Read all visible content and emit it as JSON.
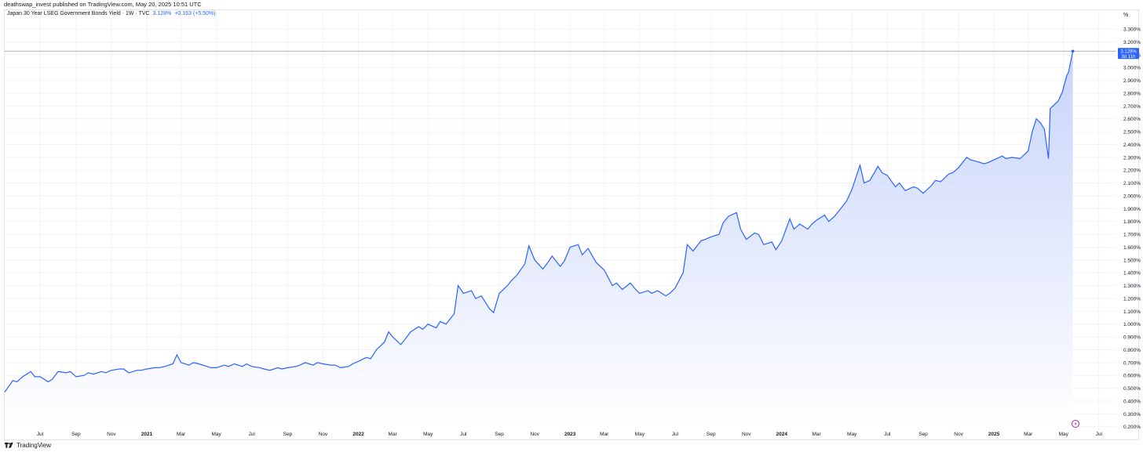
{
  "header": {
    "publisher": "deathswap_invest published on TradingView.com, May 20, 2025 10:51 UTC"
  },
  "legend": {
    "symbol": "Japan 30 Year LSEG Government Bonds Yield · 1W · TVC",
    "value": "3.128%",
    "change": "+0.163 (+5.50%)"
  },
  "footer": {
    "brand": "TradingView"
  },
  "colors": {
    "line": "#2962ff",
    "fill_top": "#c7d4fb",
    "fill_bottom": "#ffffff",
    "grid": "#f0f3fa",
    "price_label_bg": "#2962ff"
  },
  "chart_data": {
    "type": "area",
    "unit": "%",
    "grid": true,
    "last_price_label": {
      "value": "3.128%",
      "countdown": "3d 11h"
    },
    "ylim": [
      0.18,
      3.38
    ],
    "y_ticks": [
      "0.200%",
      "0.300%",
      "0.400%",
      "0.500%",
      "0.600%",
      "0.700%",
      "0.800%",
      "0.900%",
      "1.000%",
      "1.100%",
      "1.200%",
      "1.300%",
      "1.400%",
      "1.500%",
      "1.600%",
      "1.700%",
      "1.800%",
      "1.900%",
      "2.000%",
      "2.100%",
      "2.200%",
      "2.300%",
      "2.400%",
      "2.500%",
      "2.600%",
      "2.700%",
      "2.800%",
      "2.900%",
      "3.000%",
      "3.100%",
      "3.200%",
      "3.300%"
    ],
    "x_ticks": [
      {
        "label": "Jul",
        "date": "2020-07-01",
        "bold": false
      },
      {
        "label": "Sep",
        "date": "2020-09-01",
        "bold": false
      },
      {
        "label": "Nov",
        "date": "2020-11-01",
        "bold": false
      },
      {
        "label": "2021",
        "date": "2021-01-01",
        "bold": true
      },
      {
        "label": "Mar",
        "date": "2021-03-01",
        "bold": false
      },
      {
        "label": "May",
        "date": "2021-05-01",
        "bold": false
      },
      {
        "label": "Jul",
        "date": "2021-07-01",
        "bold": false
      },
      {
        "label": "Sep",
        "date": "2021-09-01",
        "bold": false
      },
      {
        "label": "Nov",
        "date": "2021-11-01",
        "bold": false
      },
      {
        "label": "2022",
        "date": "2022-01-01",
        "bold": true
      },
      {
        "label": "Mar",
        "date": "2022-03-01",
        "bold": false
      },
      {
        "label": "May",
        "date": "2022-05-01",
        "bold": false
      },
      {
        "label": "Jul",
        "date": "2022-07-01",
        "bold": false
      },
      {
        "label": "Sep",
        "date": "2022-09-01",
        "bold": false
      },
      {
        "label": "Nov",
        "date": "2022-11-01",
        "bold": false
      },
      {
        "label": "2023",
        "date": "2023-01-01",
        "bold": true
      },
      {
        "label": "Mar",
        "date": "2023-03-01",
        "bold": false
      },
      {
        "label": "May",
        "date": "2023-05-01",
        "bold": false
      },
      {
        "label": "Jul",
        "date": "2023-07-01",
        "bold": false
      },
      {
        "label": "Sep",
        "date": "2023-09-01",
        "bold": false
      },
      {
        "label": "Nov",
        "date": "2023-11-01",
        "bold": false
      },
      {
        "label": "2024",
        "date": "2024-01-01",
        "bold": true
      },
      {
        "label": "Mar",
        "date": "2024-03-01",
        "bold": false
      },
      {
        "label": "May",
        "date": "2024-05-01",
        "bold": false
      },
      {
        "label": "Jul",
        "date": "2024-07-01",
        "bold": false
      },
      {
        "label": "Sep",
        "date": "2024-09-01",
        "bold": false
      },
      {
        "label": "Nov",
        "date": "2024-11-01",
        "bold": false
      },
      {
        "label": "2025",
        "date": "2025-01-01",
        "bold": true
      },
      {
        "label": "Mar",
        "date": "2025-03-01",
        "bold": false
      },
      {
        "label": "May",
        "date": "2025-05-01",
        "bold": false
      },
      {
        "label": "Jul",
        "date": "2025-07-01",
        "bold": false
      }
    ],
    "series": [
      {
        "points": [
          [
            "2020-05-01",
            0.47
          ],
          [
            "2020-05-15",
            0.56
          ],
          [
            "2020-05-22",
            0.55
          ],
          [
            "2020-06-01",
            0.59
          ],
          [
            "2020-06-15",
            0.63
          ],
          [
            "2020-06-22",
            0.59
          ],
          [
            "2020-07-01",
            0.59
          ],
          [
            "2020-07-15",
            0.55
          ],
          [
            "2020-07-22",
            0.57
          ],
          [
            "2020-08-01",
            0.63
          ],
          [
            "2020-08-15",
            0.62
          ],
          [
            "2020-08-22",
            0.63
          ],
          [
            "2020-09-01",
            0.59
          ],
          [
            "2020-09-15",
            0.6
          ],
          [
            "2020-09-22",
            0.62
          ],
          [
            "2020-10-01",
            0.61
          ],
          [
            "2020-10-15",
            0.63
          ],
          [
            "2020-10-22",
            0.62
          ],
          [
            "2020-11-01",
            0.64
          ],
          [
            "2020-11-15",
            0.65
          ],
          [
            "2020-11-22",
            0.65
          ],
          [
            "2020-12-01",
            0.62
          ],
          [
            "2020-12-15",
            0.64
          ],
          [
            "2020-12-22",
            0.64
          ],
          [
            "2021-01-01",
            0.65
          ],
          [
            "2021-01-15",
            0.66
          ],
          [
            "2021-01-22",
            0.66
          ],
          [
            "2021-02-01",
            0.67
          ],
          [
            "2021-02-15",
            0.69
          ],
          [
            "2021-02-22",
            0.76
          ],
          [
            "2021-03-01",
            0.7
          ],
          [
            "2021-03-15",
            0.68
          ],
          [
            "2021-03-22",
            0.7
          ],
          [
            "2021-04-01",
            0.69
          ],
          [
            "2021-04-15",
            0.67
          ],
          [
            "2021-04-22",
            0.66
          ],
          [
            "2021-05-01",
            0.66
          ],
          [
            "2021-05-15",
            0.68
          ],
          [
            "2021-05-22",
            0.67
          ],
          [
            "2021-06-01",
            0.69
          ],
          [
            "2021-06-15",
            0.67
          ],
          [
            "2021-06-22",
            0.69
          ],
          [
            "2021-07-01",
            0.67
          ],
          [
            "2021-07-15",
            0.66
          ],
          [
            "2021-07-22",
            0.65
          ],
          [
            "2021-08-01",
            0.64
          ],
          [
            "2021-08-15",
            0.66
          ],
          [
            "2021-08-22",
            0.65
          ],
          [
            "2021-09-01",
            0.66
          ],
          [
            "2021-09-15",
            0.67
          ],
          [
            "2021-09-22",
            0.68
          ],
          [
            "2021-10-01",
            0.7
          ],
          [
            "2021-10-15",
            0.68
          ],
          [
            "2021-10-22",
            0.7
          ],
          [
            "2021-11-01",
            0.69
          ],
          [
            "2021-11-15",
            0.68
          ],
          [
            "2021-11-22",
            0.68
          ],
          [
            "2021-12-01",
            0.66
          ],
          [
            "2021-12-15",
            0.67
          ],
          [
            "2021-12-22",
            0.69
          ],
          [
            "2022-01-01",
            0.71
          ],
          [
            "2022-01-15",
            0.74
          ],
          [
            "2022-01-22",
            0.73
          ],
          [
            "2022-02-01",
            0.8
          ],
          [
            "2022-02-15",
            0.86
          ],
          [
            "2022-02-22",
            0.94
          ],
          [
            "2022-03-01",
            0.9
          ],
          [
            "2022-03-15",
            0.84
          ],
          [
            "2022-03-22",
            0.88
          ],
          [
            "2022-04-01",
            0.94
          ],
          [
            "2022-04-15",
            0.98
          ],
          [
            "2022-04-22",
            0.96
          ],
          [
            "2022-05-01",
            1.0
          ],
          [
            "2022-05-15",
            0.97
          ],
          [
            "2022-05-22",
            1.02
          ],
          [
            "2022-06-01",
            1.0
          ],
          [
            "2022-06-15",
            1.08
          ],
          [
            "2022-06-22",
            1.3
          ],
          [
            "2022-07-01",
            1.24
          ],
          [
            "2022-07-15",
            1.26
          ],
          [
            "2022-07-22",
            1.2
          ],
          [
            "2022-08-01",
            1.22
          ],
          [
            "2022-08-15",
            1.12
          ],
          [
            "2022-08-22",
            1.09
          ],
          [
            "2022-09-01",
            1.24
          ],
          [
            "2022-09-15",
            1.3
          ],
          [
            "2022-09-22",
            1.34
          ],
          [
            "2022-10-01",
            1.38
          ],
          [
            "2022-10-15",
            1.47
          ],
          [
            "2022-10-22",
            1.61
          ],
          [
            "2022-11-01",
            1.5
          ],
          [
            "2022-11-15",
            1.43
          ],
          [
            "2022-11-22",
            1.47
          ],
          [
            "2022-12-01",
            1.53
          ],
          [
            "2022-12-15",
            1.45
          ],
          [
            "2022-12-22",
            1.49
          ],
          [
            "2023-01-01",
            1.6
          ],
          [
            "2023-01-15",
            1.62
          ],
          [
            "2023-01-22",
            1.54
          ],
          [
            "2023-02-01",
            1.59
          ],
          [
            "2023-02-15",
            1.48
          ],
          [
            "2023-02-22",
            1.45
          ],
          [
            "2023-03-01",
            1.42
          ],
          [
            "2023-03-15",
            1.3
          ],
          [
            "2023-03-22",
            1.32
          ],
          [
            "2023-04-01",
            1.27
          ],
          [
            "2023-04-15",
            1.32
          ],
          [
            "2023-04-22",
            1.28
          ],
          [
            "2023-05-01",
            1.24
          ],
          [
            "2023-05-15",
            1.26
          ],
          [
            "2023-05-22",
            1.24
          ],
          [
            "2023-06-01",
            1.26
          ],
          [
            "2023-06-15",
            1.22
          ],
          [
            "2023-06-22",
            1.24
          ],
          [
            "2023-07-01",
            1.28
          ],
          [
            "2023-07-15",
            1.4
          ],
          [
            "2023-07-22",
            1.62
          ],
          [
            "2023-08-01",
            1.57
          ],
          [
            "2023-08-15",
            1.65
          ],
          [
            "2023-08-22",
            1.66
          ],
          [
            "2023-09-01",
            1.68
          ],
          [
            "2023-09-15",
            1.7
          ],
          [
            "2023-09-22",
            1.79
          ],
          [
            "2023-10-01",
            1.84
          ],
          [
            "2023-10-15",
            1.87
          ],
          [
            "2023-10-22",
            1.74
          ],
          [
            "2023-11-01",
            1.66
          ],
          [
            "2023-11-15",
            1.71
          ],
          [
            "2023-11-22",
            1.7
          ],
          [
            "2023-12-01",
            1.62
          ],
          [
            "2023-12-15",
            1.64
          ],
          [
            "2023-12-22",
            1.58
          ],
          [
            "2024-01-01",
            1.65
          ],
          [
            "2024-01-15",
            1.82
          ],
          [
            "2024-01-22",
            1.74
          ],
          [
            "2024-02-01",
            1.78
          ],
          [
            "2024-02-15",
            1.74
          ],
          [
            "2024-02-22",
            1.78
          ],
          [
            "2024-03-01",
            1.81
          ],
          [
            "2024-03-15",
            1.85
          ],
          [
            "2024-03-22",
            1.8
          ],
          [
            "2024-04-01",
            1.84
          ],
          [
            "2024-04-15",
            1.92
          ],
          [
            "2024-04-22",
            1.96
          ],
          [
            "2024-05-01",
            2.05
          ],
          [
            "2024-05-15",
            2.24
          ],
          [
            "2024-05-22",
            2.1
          ],
          [
            "2024-06-01",
            2.12
          ],
          [
            "2024-06-15",
            2.23
          ],
          [
            "2024-06-22",
            2.18
          ],
          [
            "2024-07-01",
            2.16
          ],
          [
            "2024-07-15",
            2.07
          ],
          [
            "2024-07-22",
            2.1
          ],
          [
            "2024-08-01",
            2.04
          ],
          [
            "2024-08-15",
            2.07
          ],
          [
            "2024-08-22",
            2.06
          ],
          [
            "2024-09-01",
            2.02
          ],
          [
            "2024-09-15",
            2.08
          ],
          [
            "2024-09-22",
            2.12
          ],
          [
            "2024-10-01",
            2.11
          ],
          [
            "2024-10-15",
            2.17
          ],
          [
            "2024-10-22",
            2.18
          ],
          [
            "2024-11-01",
            2.22
          ],
          [
            "2024-11-15",
            2.3
          ],
          [
            "2024-11-22",
            2.28
          ],
          [
            "2024-12-01",
            2.27
          ],
          [
            "2024-12-15",
            2.25
          ],
          [
            "2024-12-22",
            2.26
          ],
          [
            "2025-01-01",
            2.28
          ],
          [
            "2025-01-15",
            2.31
          ],
          [
            "2025-01-22",
            2.29
          ],
          [
            "2025-02-01",
            2.3
          ],
          [
            "2025-02-15",
            2.29
          ],
          [
            "2025-02-22",
            2.32
          ],
          [
            "2025-03-01",
            2.35
          ],
          [
            "2025-03-08",
            2.5
          ],
          [
            "2025-03-15",
            2.6
          ],
          [
            "2025-03-22",
            2.57
          ],
          [
            "2025-03-29",
            2.52
          ],
          [
            "2025-04-05",
            2.29
          ],
          [
            "2025-04-08",
            2.68
          ],
          [
            "2025-04-15",
            2.71
          ],
          [
            "2025-04-22",
            2.74
          ],
          [
            "2025-04-29",
            2.81
          ],
          [
            "2025-05-06",
            2.93
          ],
          [
            "2025-05-10",
            2.97
          ],
          [
            "2025-05-17",
            3.128
          ]
        ]
      }
    ]
  }
}
